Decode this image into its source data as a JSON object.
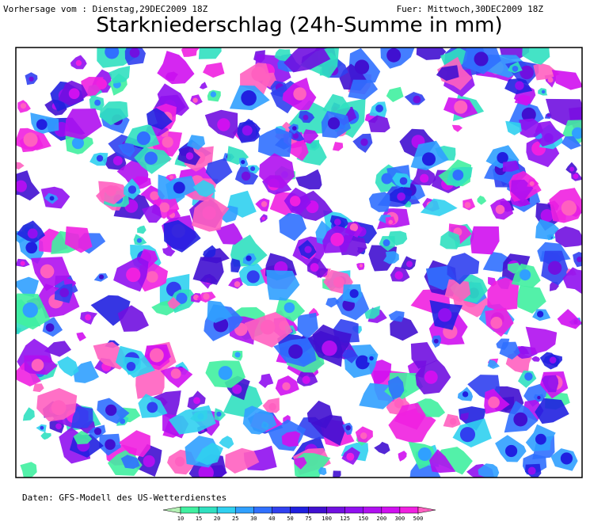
{
  "header": {
    "left": "Vorhersage vom : Dienstag,29DEC2009 18Z",
    "right": "Fuer: Mittwoch,30DEC2009 18Z",
    "title": "Starkniederschlag (24h-Summe in mm)"
  },
  "footer": {
    "source": "Daten: GFS-Modell des US-Wetterdienstes"
  },
  "legend": {
    "ticks": [
      10,
      15,
      20,
      25,
      30,
      40,
      50,
      75,
      100,
      125,
      150,
      200,
      300,
      500
    ],
    "colors": [
      "#b4f0b4",
      "#40f0a0",
      "#30e0c0",
      "#30d0f0",
      "#30a0ff",
      "#3070ff",
      "#3040f0",
      "#2020e0",
      "#4010d0",
      "#7010e0",
      "#9010f0",
      "#b010f0",
      "#d010f0",
      "#f020e0",
      "#ff60c0"
    ]
  }
}
